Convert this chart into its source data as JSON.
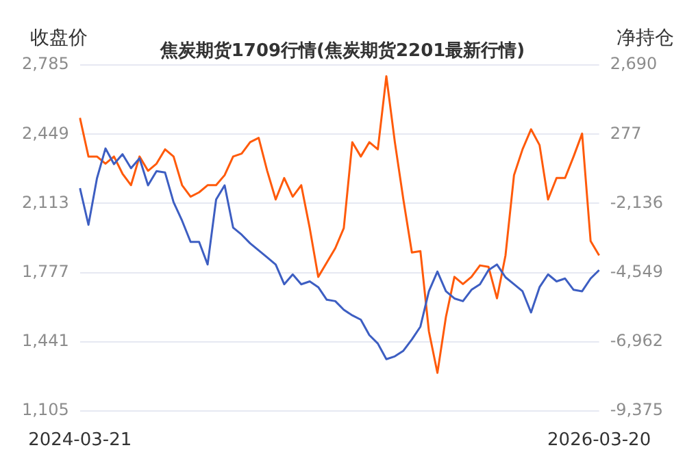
{
  "chart_data": {
    "type": "line",
    "title": "焦炭期货1709行情(焦炭期货2201最新行情)",
    "ylabel": "收盘价",
    "y2label": "净持仓",
    "categories": [
      "2024-03-21",
      null,
      null,
      null,
      null,
      null,
      null,
      null,
      null,
      null,
      null,
      null,
      null,
      null,
      null,
      null,
      null,
      null,
      null,
      null,
      null,
      null,
      null,
      null,
      null,
      null,
      null,
      null,
      null,
      null,
      null,
      null,
      null,
      null,
      null,
      null,
      null,
      null,
      null,
      null,
      null,
      null,
      null,
      null,
      null,
      null,
      null,
      null,
      null,
      null,
      null,
      null,
      null,
      null,
      null,
      null,
      null,
      null,
      null,
      null,
      null,
      "2026-03-20"
    ],
    "series": [
      {
        "color": "#3d5ec2",
        "values": [
          2187,
          2009,
          2235,
          2380,
          2304,
          2352,
          2284,
          2332,
          2201,
          2270,
          2263,
          2119,
          2029,
          1926,
          1926,
          1816,
          2132,
          2201,
          1995,
          1961,
          1919,
          1885,
          1851,
          1816,
          1720,
          1768,
          1720,
          1734,
          1706,
          1645,
          1638,
          1596,
          1569,
          1548,
          1473,
          1432,
          1356,
          1370,
          1397,
          1452,
          1514,
          1686,
          1782,
          1686,
          1651,
          1638,
          1693,
          1720,
          1789,
          1816,
          1754,
          1720,
          1686,
          1583,
          1706,
          1768,
          1734,
          1748,
          1693,
          1686,
          1748,
          1789
        ]
      },
      {
        "color": "#ff5a0a",
        "axis": "y2",
        "values": [
          850,
          -500,
          -500,
          -750,
          -500,
          -1100,
          -1500,
          -500,
          -1000,
          -750,
          -250,
          -500,
          -1500,
          -1900,
          -1750,
          -1500,
          -1500,
          -1150,
          -500,
          -400,
          0,
          150,
          -1000,
          -2000,
          -1250,
          -1900,
          -1500,
          -3000,
          -4700,
          -4200,
          -3700,
          -3000,
          0,
          -500,
          0,
          -250,
          2300,
          0,
          -2000,
          -3850,
          -3800,
          -6600,
          -8050,
          -6100,
          -4700,
          -4950,
          -4700,
          -4300,
          -4350,
          -5450,
          -3950,
          -1150,
          -250,
          450,
          -100,
          -2000,
          -1250,
          -1250,
          -500,
          300,
          -3450,
          -3950
        ]
      }
    ],
    "ylim": [
      1105,
      2785
    ],
    "yticks": [
      {
        "value": 1105,
        "label": "1,105"
      },
      {
        "value": 1441,
        "label": "1,441"
      },
      {
        "value": 1777,
        "label": "1,777"
      },
      {
        "value": 2113,
        "label": "2,113"
      },
      {
        "value": 2449,
        "label": "2,449"
      },
      {
        "value": 2785,
        "label": "2,785"
      }
    ],
    "y2lim": [
      -9375,
      2690
    ],
    "y2ticks": [
      {
        "value": -9375,
        "label": "-9,375"
      },
      {
        "value": -6962,
        "label": "-6,962"
      },
      {
        "value": -4549,
        "label": "-4,549"
      },
      {
        "value": -2136,
        "label": "-2,136"
      },
      277,
      {
        "value": 2690,
        "label": "2,690"
      }
    ],
    "grid": "y",
    "legend": false,
    "marker": "none",
    "line_style": "solid"
  }
}
